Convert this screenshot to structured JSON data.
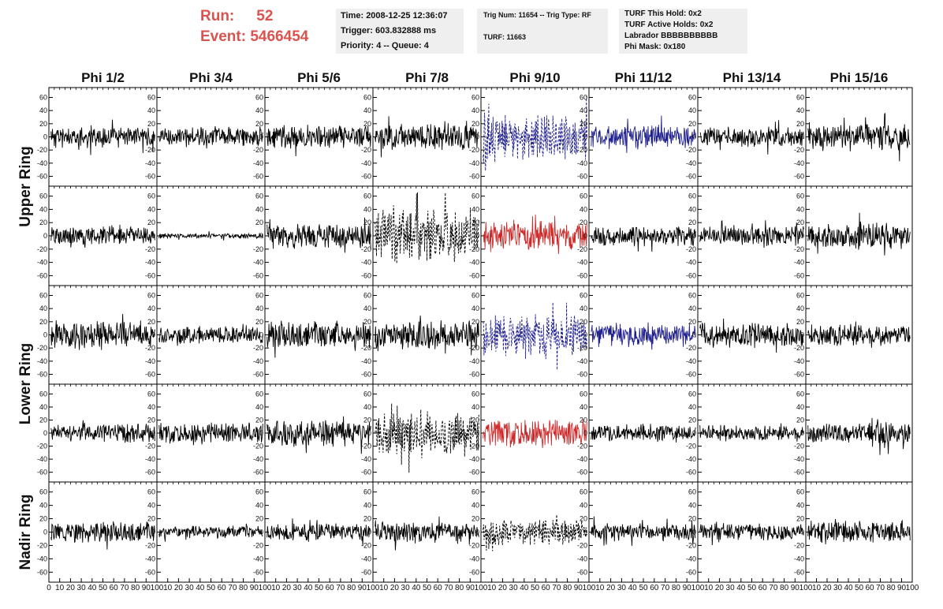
{
  "header": {
    "run_label": "Run:",
    "run_value": "52",
    "event_label": "Event:",
    "event_value": "5466454"
  },
  "info_time": {
    "time": "Time: 2008-12-25 12:36:07",
    "trigger": "Trigger: 603.832888 ms",
    "priority": "Priority: 4 -- Queue: 4"
  },
  "info_trig": {
    "trig": "Trig Num: 11654 -- Trig Type: RF",
    "turf": "TURF: 11663"
  },
  "info_turf": {
    "hold": "TURF This Hold: 0x2",
    "active": "TURF Active Holds: 0x2",
    "labrador": "Labrador BBBBBBBBBB",
    "phi_mask": "Phi Mask: 0x180"
  },
  "colors": {
    "trace": "#000000",
    "blue": "#1f1f8f",
    "red": "#cc2a2a",
    "header_red": "#d9534f",
    "box_bg": "#efefef"
  },
  "chart_data": {
    "type": "line",
    "columns": [
      "Phi 1/2",
      "Phi 3/4",
      "Phi 5/6",
      "Phi 7/8",
      "Phi 9/10",
      "Phi 11/12",
      "Phi 13/14",
      "Phi 15/16"
    ],
    "rows": [
      "Upper Ring",
      "Upper Ring",
      "Lower Ring",
      "Lower Ring",
      "Nadir Ring"
    ],
    "row_titles": [
      {
        "label": "Upper Ring",
        "rows": [
          0,
          1
        ]
      },
      {
        "label": "Lower Ring",
        "rows": [
          2,
          3
        ]
      },
      {
        "label": "Nadir Ring",
        "rows": [
          4
        ]
      }
    ],
    "xlim": [
      0,
      100
    ],
    "ylim": [
      -75,
      75
    ],
    "y_ticks": [
      -60,
      -40,
      -20,
      0,
      20,
      40,
      60
    ],
    "y_tick_labels": [
      "-60",
      "-40",
      "-20",
      "0",
      "20",
      "40",
      "60"
    ],
    "x_ticks": [
      0,
      10,
      20,
      30,
      40,
      50,
      60,
      70,
      80,
      90,
      100
    ],
    "x_tick_labels": [
      "0",
      "10",
      "20",
      "30",
      "40",
      "50",
      "60",
      "70",
      "80",
      "90",
      "100"
    ],
    "axis_side": [
      "left",
      "right",
      "left",
      "right",
      "left",
      "right",
      "left",
      "right"
    ],
    "panels": [
      [
        {
          "amp": 13,
          "style": "solid",
          "color": "black",
          "seed": 11
        },
        {
          "amp": 12,
          "style": "solid",
          "color": "black",
          "seed": 12
        },
        {
          "amp": 14,
          "style": "solid",
          "color": "black",
          "seed": 13
        },
        {
          "amp": 15,
          "style": "solid",
          "color": "black",
          "seed": 14
        },
        {
          "amp": 30,
          "style": "dashed",
          "color": "blue",
          "seed": 15
        },
        {
          "amp": 14,
          "style": "solid",
          "color": "blue",
          "seed": 16
        },
        {
          "amp": 12,
          "style": "solid",
          "color": "black",
          "seed": 17
        },
        {
          "amp": 16,
          "style": "solid",
          "color": "black",
          "seed": 18
        }
      ],
      [
        {
          "amp": 11,
          "style": "solid",
          "color": "black",
          "seed": 21
        },
        {
          "amp": 3,
          "style": "solid",
          "color": "black",
          "seed": 22
        },
        {
          "amp": 15,
          "style": "solid",
          "color": "black",
          "seed": 23
        },
        {
          "amp": 32,
          "style": "dashed",
          "color": "black",
          "seed": 24
        },
        {
          "amp": 17,
          "style": "solid",
          "color": "red",
          "seed": 25
        },
        {
          "amp": 12,
          "style": "solid",
          "color": "black",
          "seed": 26
        },
        {
          "amp": 11,
          "style": "solid",
          "color": "black",
          "seed": 27
        },
        {
          "amp": 15,
          "style": "solid",
          "color": "black",
          "seed": 28
        }
      ],
      [
        {
          "amp": 15,
          "style": "solid",
          "color": "black",
          "seed": 31
        },
        {
          "amp": 10,
          "style": "solid",
          "color": "black",
          "seed": 32
        },
        {
          "amp": 16,
          "style": "solid",
          "color": "black",
          "seed": 33
        },
        {
          "amp": 17,
          "style": "solid",
          "color": "black",
          "seed": 34
        },
        {
          "amp": 24,
          "style": "dashed",
          "color": "blue",
          "seed": 35
        },
        {
          "amp": 14,
          "style": "solid",
          "color": "blue",
          "seed": 36
        },
        {
          "amp": 15,
          "style": "solid",
          "color": "black",
          "seed": 37
        },
        {
          "amp": 13,
          "style": "solid",
          "color": "black",
          "seed": 38
        }
      ],
      [
        {
          "amp": 11,
          "style": "solid",
          "color": "black",
          "seed": 41
        },
        {
          "amp": 12,
          "style": "solid",
          "color": "black",
          "seed": 42
        },
        {
          "amp": 15,
          "style": "solid",
          "color": "black",
          "seed": 43
        },
        {
          "amp": 27,
          "style": "dashed",
          "color": "black",
          "seed": 44
        },
        {
          "amp": 17,
          "style": "solid",
          "color": "red",
          "seed": 45
        },
        {
          "amp": 10,
          "style": "solid",
          "color": "black",
          "seed": 46
        },
        {
          "amp": 9,
          "style": "solid",
          "color": "black",
          "seed": 47
        },
        {
          "amp": 14,
          "style": "solid",
          "color": "black",
          "seed": 48
        }
      ],
      [
        {
          "amp": 12,
          "style": "solid",
          "color": "black",
          "seed": 51
        },
        {
          "amp": 7,
          "style": "solid",
          "color": "black",
          "seed": 52
        },
        {
          "amp": 10,
          "style": "solid",
          "color": "black",
          "seed": 53
        },
        {
          "amp": 12,
          "style": "solid",
          "color": "black",
          "seed": 54
        },
        {
          "amp": 15,
          "style": "dashed",
          "color": "black",
          "seed": 55
        },
        {
          "amp": 10,
          "style": "solid",
          "color": "black",
          "seed": 56
        },
        {
          "amp": 10,
          "style": "solid",
          "color": "black",
          "seed": 57
        },
        {
          "amp": 13,
          "style": "solid",
          "color": "black",
          "seed": 58
        }
      ]
    ]
  }
}
